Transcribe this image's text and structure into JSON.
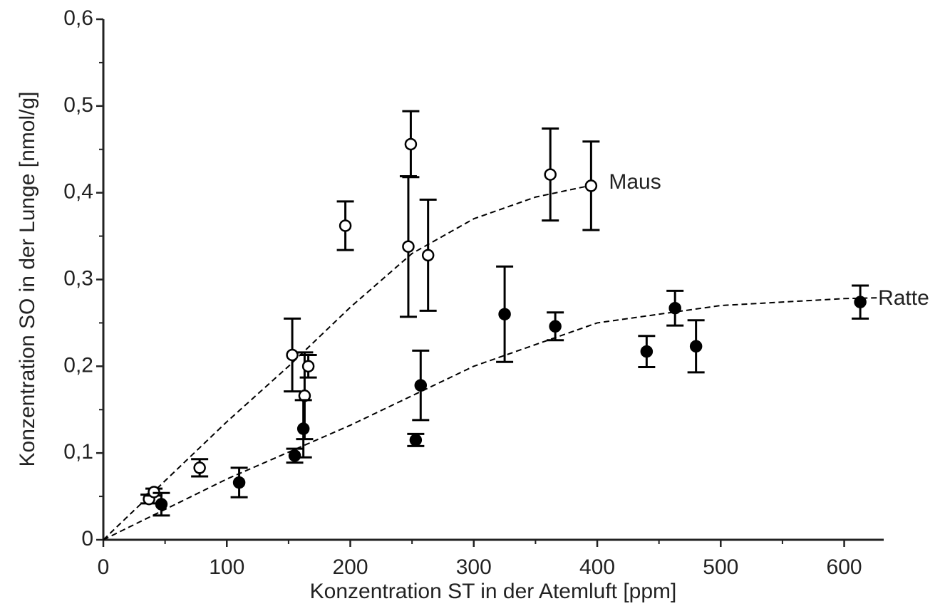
{
  "chart_data": {
    "type": "scatter",
    "xlabel": "Konzentration ST in der Atemluft [ppm]",
    "ylabel": "Konzentration SO in der Lunge [nmol/g]",
    "xlim": [
      0,
      632
    ],
    "ylim": [
      0,
      0.6
    ],
    "xticks": [
      0,
      100,
      200,
      300,
      400,
      500,
      600
    ],
    "xminorticks": [
      50,
      150,
      250,
      350,
      450,
      550
    ],
    "yticks": [
      0,
      {
        "value": 0.1,
        "label": "0,1"
      },
      {
        "value": 0.2,
        "label": "0,2"
      },
      {
        "value": 0.3,
        "label": "0,3"
      },
      {
        "value": 0.4,
        "label": "0,4"
      },
      {
        "value": 0.5,
        "label": "0,5"
      },
      {
        "value": 0.6,
        "label": "0,6"
      }
    ],
    "yminorticks": [
      0.05,
      0.15,
      0.25,
      0.35,
      0.45,
      0.55
    ],
    "series": [
      {
        "name": "Maus",
        "color": "#000000",
        "marker": "open",
        "x": [
          37,
          41,
          78,
          153,
          163,
          166,
          196,
          247,
          249,
          263,
          362,
          395
        ],
        "values": [
          0.047,
          0.055,
          0.083,
          0.213,
          0.166,
          0.2,
          0.362,
          0.338,
          0.456,
          0.328,
          0.421,
          0.408
        ],
        "errors": [
          0.005,
          0.004,
          0.01,
          0.042,
          0.05,
          0.013,
          0.028,
          0.081,
          0.038,
          0.064,
          0.053,
          0.051
        ],
        "fit": {
          "x": [
            0,
            50,
            100,
            150,
            200,
            250,
            300,
            350,
            400
          ],
          "y": [
            0,
            0.068,
            0.136,
            0.2,
            0.268,
            0.33,
            0.37,
            0.395,
            0.41
          ]
        }
      },
      {
        "name": "Ratte",
        "color": "#000000",
        "marker": "filled",
        "x": [
          47,
          110,
          155,
          162,
          253,
          257,
          325,
          366,
          440,
          463,
          480,
          613
        ],
        "values": [
          0.041,
          0.066,
          0.097,
          0.128,
          0.115,
          0.178,
          0.26,
          0.246,
          0.217,
          0.267,
          0.223,
          0.274
        ],
        "errors": [
          0.013,
          0.017,
          0.008,
          0.033,
          0.007,
          0.04,
          0.055,
          0.016,
          0.018,
          0.02,
          0.03,
          0.019
        ],
        "fit": {
          "x": [
            0,
            100,
            200,
            300,
            400,
            500,
            600,
            630
          ],
          "y": [
            0,
            0.07,
            0.132,
            0.2,
            0.25,
            0.27,
            0.278,
            0.279
          ]
        }
      }
    ]
  }
}
